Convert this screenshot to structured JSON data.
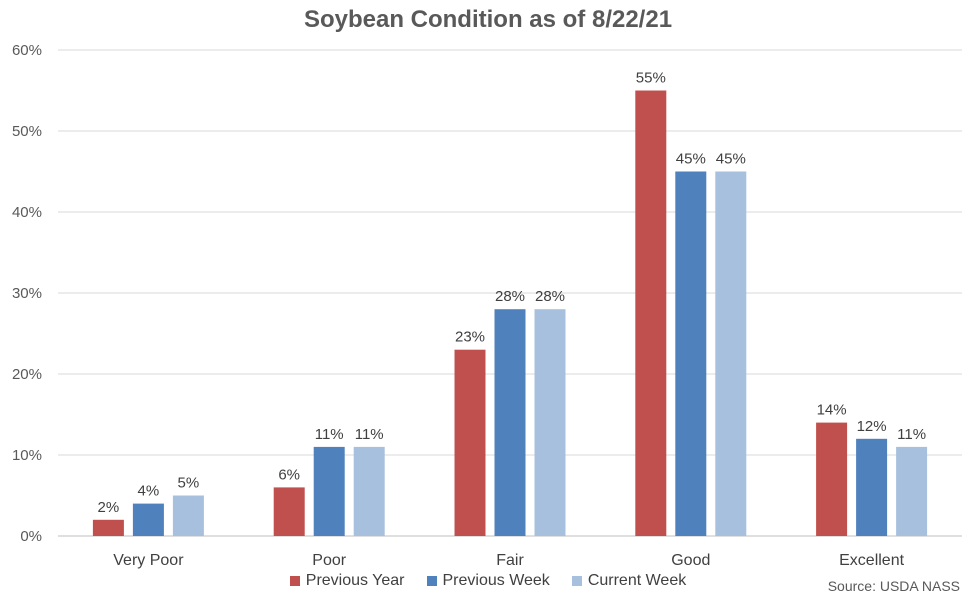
{
  "chart_data": {
    "type": "bar",
    "title": "Soybean Condition as of 8/22/21",
    "categories": [
      "Very Poor",
      "Poor",
      "Fair",
      "Good",
      "Excellent"
    ],
    "series": [
      {
        "name": "Previous Year",
        "color": "#C0504D",
        "values": [
          2,
          6,
          23,
          55,
          14
        ]
      },
      {
        "name": "Previous Week",
        "color": "#4F81BD",
        "values": [
          4,
          11,
          28,
          45,
          12
        ]
      },
      {
        "name": "Current Week",
        "color": "#A7C0DE",
        "values": [
          5,
          11,
          28,
          45,
          11
        ]
      }
    ],
    "ylim": [
      0,
      60
    ],
    "yticks": [
      0,
      10,
      20,
      30,
      40,
      50,
      60
    ],
    "value_suffix": "%",
    "grid": true,
    "legend_position": "bottom",
    "source": "Source: USDA NASS"
  }
}
